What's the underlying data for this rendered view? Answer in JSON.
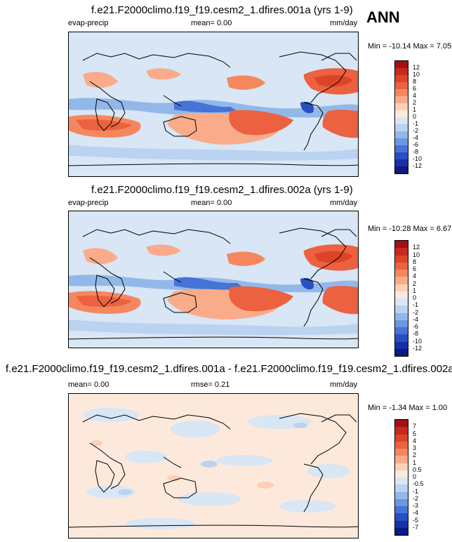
{
  "season": "ANN",
  "units": "mm/day",
  "panels": [
    {
      "title": "f.e21.F2000climo.f19_f19.cesm2_1.dfires.001a (yrs 1-9)",
      "variable": "evap-precip",
      "mean_text": "mean=   0.00",
      "minmax_text": "Min = -10.14 Max =   7.05",
      "levels": [
        "12",
        "10",
        "8",
        "6",
        "4",
        "2",
        "1",
        "0",
        "-1",
        "-2",
        "-4",
        "-6",
        "-8",
        "-10",
        "-12"
      ],
      "colors": [
        "#a50f15",
        "#c8281e",
        "#dc4428",
        "#ec6140",
        "#f5875f",
        "#f9ab8a",
        "#fcd0b6",
        "#fde9dc",
        "#d8e6f5",
        "#b9d3f0",
        "#92b8ea",
        "#6a98e2",
        "#4573d6",
        "#2a4fc4",
        "#1730a8",
        "#0d1a85"
      ],
      "mean": 0.0,
      "min": -10.14,
      "max": 7.05
    },
    {
      "title": "f.e21.F2000climo.f19_f19.cesm2_1.dfires.002a (yrs 1-9)",
      "variable": "evap-precip",
      "mean_text": "mean=   0.00",
      "minmax_text": "Min = -10.28 Max =   6.67",
      "levels": [
        "12",
        "10",
        "8",
        "6",
        "4",
        "2",
        "1",
        "0",
        "-1",
        "-2",
        "-4",
        "-6",
        "-8",
        "-10",
        "-12"
      ],
      "colors": [
        "#a50f15",
        "#c8281e",
        "#dc4428",
        "#ec6140",
        "#f5875f",
        "#f9ab8a",
        "#fcd0b6",
        "#fde9dc",
        "#d8e6f5",
        "#b9d3f0",
        "#92b8ea",
        "#6a98e2",
        "#4573d6",
        "#2a4fc4",
        "#1730a8",
        "#0d1a85"
      ],
      "mean": 0.0,
      "min": -10.28,
      "max": 6.67
    },
    {
      "title": "f.e21.F2000climo.f19_f19.cesm2_1.dfires.001a - f.e21.F2000climo.f19_f19.cesm2_1.dfires.002a",
      "mean_text": "mean=   0.00",
      "rmse_text": "rmse=   0.21",
      "minmax_text": "Min =  -1.34 Max =   1.00",
      "levels": [
        "7",
        "5",
        "4",
        "3",
        "2",
        "1",
        "0.5",
        "0",
        "-0.5",
        "-1",
        "-2",
        "-3",
        "-4",
        "-5",
        "-7"
      ],
      "colors": [
        "#a50f15",
        "#c8281e",
        "#dc4428",
        "#ec6140",
        "#f5875f",
        "#f9ab8a",
        "#fcd0b6",
        "#fde9dc",
        "#d8e6f5",
        "#b9d3f0",
        "#92b8ea",
        "#6a98e2",
        "#4573d6",
        "#2a4fc4",
        "#1730a8",
        "#0d1a85"
      ],
      "mean": 0.0,
      "rmse": 0.21,
      "min": -1.34,
      "max": 1.0
    }
  ]
}
